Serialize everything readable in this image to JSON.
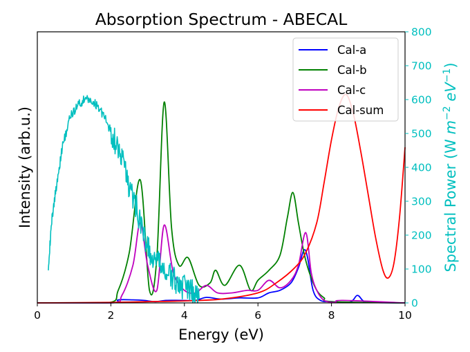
{
  "chart_data": {
    "type": "line",
    "title": "Absorption Spectrum - ABECAL",
    "xlabel": "Energy (eV)",
    "ylabel_left": "Intensity (arb.u.)",
    "ylabel_right_parts": [
      "Spectral Power (W ",
      "m",
      "−2",
      " ",
      "eV",
      "−1",
      ")"
    ],
    "xlim": [
      0,
      10
    ],
    "y_left_lim": [
      0,
      1.08
    ],
    "y_right_lim": [
      0,
      800
    ],
    "x_ticks": [
      0,
      2,
      4,
      6,
      8,
      10
    ],
    "x_tick_labels": [
      "0",
      "2",
      "4",
      "6",
      "8",
      "10"
    ],
    "y_right_ticks": [
      0,
      100,
      200,
      300,
      400,
      500,
      600,
      700,
      800
    ],
    "y_right_tick_labels": [
      "0",
      "100",
      "200",
      "300",
      "400",
      "500",
      "600",
      "700",
      "800"
    ],
    "y_left_ticks": [],
    "legend_position": "upper right",
    "grid": false,
    "colors": {
      "Cal-a": "#0000ff",
      "Cal-b": "#008000",
      "Cal-c": "#bf00bf",
      "Cal-sum": "#ff0000",
      "solar": "#00bfbf"
    },
    "series": [
      {
        "name": "Cal-a",
        "axis": "left",
        "x": [
          0,
          2.0,
          2.2,
          2.6,
          2.9,
          3.2,
          3.5,
          3.9,
          4.3,
          4.6,
          5.0,
          5.5,
          6.0,
          6.3,
          6.6,
          6.9,
          7.1,
          7.25,
          7.35,
          7.5,
          7.7,
          8.0,
          8.5,
          8.7,
          8.85,
          9.0,
          10
        ],
        "y": [
          0,
          0,
          0.012,
          0.012,
          0.01,
          0.005,
          0.01,
          0.01,
          0.01,
          0.022,
          0.015,
          0.02,
          0.02,
          0.04,
          0.05,
          0.08,
          0.14,
          0.21,
          0.18,
          0.05,
          0.01,
          0.005,
          0.003,
          0.03,
          0.01,
          0.002,
          0
        ]
      },
      {
        "name": "Cal-b",
        "axis": "left",
        "x": [
          0,
          1.9,
          2.2,
          2.5,
          2.8,
          3.05,
          3.25,
          3.45,
          3.65,
          3.85,
          4.1,
          4.4,
          4.7,
          4.85,
          5.1,
          5.5,
          5.8,
          6.0,
          6.3,
          6.6,
          6.8,
          6.95,
          7.1,
          7.25,
          7.4,
          7.6,
          7.8,
          8.0,
          10
        ],
        "y": [
          0,
          0,
          0.05,
          0.2,
          0.49,
          0.05,
          0.18,
          0.8,
          0.3,
          0.15,
          0.18,
          0.07,
          0.08,
          0.13,
          0.07,
          0.15,
          0.05,
          0.09,
          0.13,
          0.19,
          0.34,
          0.44,
          0.32,
          0.2,
          0.12,
          0.05,
          0.02,
          0.005,
          0
        ]
      },
      {
        "name": "Cal-c",
        "axis": "left",
        "x": [
          0,
          2.0,
          2.3,
          2.6,
          2.8,
          3.0,
          3.25,
          3.45,
          3.7,
          4.0,
          4.3,
          4.6,
          4.9,
          5.3,
          5.7,
          6.0,
          6.3,
          6.6,
          6.9,
          7.1,
          7.3,
          7.45,
          7.6,
          7.8,
          8.1,
          8.3,
          10
        ],
        "y": [
          0,
          0,
          0.03,
          0.15,
          0.32,
          0.15,
          0.05,
          0.31,
          0.12,
          0.05,
          0.04,
          0.07,
          0.04,
          0.04,
          0.05,
          0.05,
          0.09,
          0.06,
          0.09,
          0.15,
          0.28,
          0.12,
          0.05,
          0.01,
          0.002,
          0.01,
          0
        ]
      },
      {
        "name": "Cal-sum",
        "axis": "left",
        "x": [
          0,
          2.0,
          3.0,
          4.0,
          5.0,
          6.0,
          6.5,
          7.0,
          7.3,
          7.6,
          7.8,
          8.0,
          8.2,
          8.4,
          8.6,
          8.8,
          9.0,
          9.2,
          9.4,
          9.55,
          9.7,
          9.85,
          10.0
        ],
        "y": [
          0,
          0.002,
          0.005,
          0.008,
          0.015,
          0.04,
          0.08,
          0.14,
          0.2,
          0.32,
          0.48,
          0.65,
          0.78,
          0.83,
          0.75,
          0.6,
          0.43,
          0.26,
          0.13,
          0.1,
          0.16,
          0.34,
          0.62
        ]
      },
      {
        "name": "solar",
        "axis": "right",
        "x": [
          0.3,
          0.4,
          0.55,
          0.7,
          0.9,
          1.1,
          1.3,
          1.5,
          1.7,
          1.9,
          2.1,
          2.3,
          2.5,
          2.7,
          2.9,
          3.1,
          3.3,
          3.5,
          3.7,
          3.9,
          4.1,
          4.3,
          4.4
        ],
        "y": [
          110,
          250,
          370,
          470,
          550,
          585,
          600,
          595,
          575,
          530,
          480,
          430,
          340,
          280,
          200,
          130,
          115,
          90,
          70,
          50,
          40,
          25,
          12
        ]
      }
    ]
  }
}
